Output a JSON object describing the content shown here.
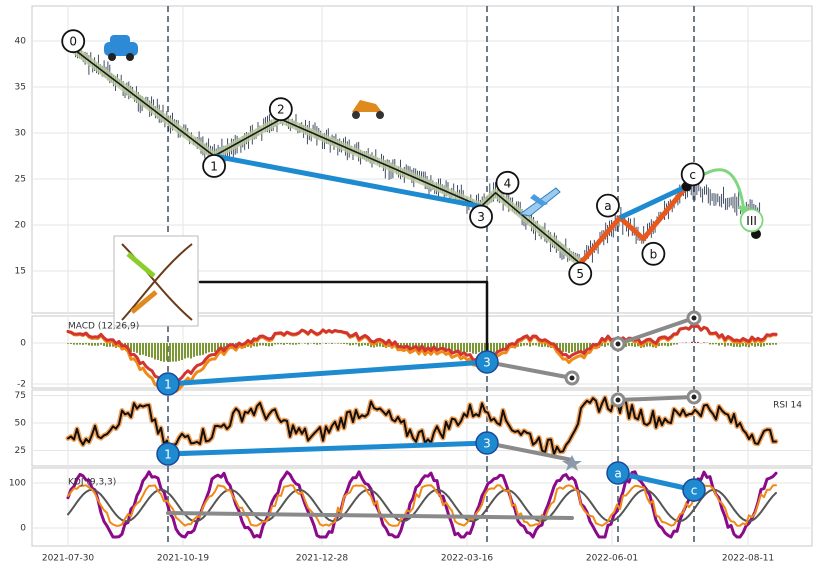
{
  "chart_data": {
    "type": "line",
    "x_ticks": [
      "2021-07-30",
      "2021-10-19",
      "2021-12-28",
      "2022-03-16",
      "2022-06-01",
      "2022-08-11"
    ],
    "price_panel": {
      "y_ticks": [
        15,
        20,
        25,
        30,
        35,
        40
      ],
      "ylim": [
        10,
        44
      ],
      "waves": [
        {
          "label": "0",
          "date": "2021-08-03",
          "price": 39.0
        },
        {
          "label": "1",
          "date": "2021-10-19",
          "price": 27.5
        },
        {
          "label": "2",
          "date": "2021-11-25",
          "price": 31.5
        },
        {
          "label": "3",
          "date": "2022-03-16",
          "price": 22.0
        },
        {
          "label": "4",
          "date": "2022-03-24",
          "price": 23.5
        },
        {
          "label": "5",
          "date": "2022-05-10",
          "price": 15.8
        },
        {
          "label": "a",
          "date": "2022-06-01",
          "price": 20.8
        },
        {
          "label": "b",
          "date": "2022-06-14",
          "price": 18.5
        },
        {
          "label": "c",
          "date": "2022-07-08",
          "price": 24.2
        },
        {
          "label": "III",
          "date": "2022-08-13",
          "price": 20.5
        }
      ]
    },
    "macd_panel": {
      "label": "MACD (12,26,9)",
      "y_ticks": [
        -2,
        0
      ]
    },
    "rsi_panel": {
      "label": "RSI 14",
      "y_ticks": [
        25,
        50,
        75
      ]
    },
    "kdj_panel": {
      "label": "KDJ (9,3,3)",
      "y_ticks": [
        0,
        100
      ]
    },
    "divergence_labels": {
      "macd": [
        "1",
        "3"
      ],
      "rsi": [
        "1",
        "3"
      ],
      "kdj": [
        "a",
        "c"
      ]
    },
    "colors": {
      "price": "#2f3b52",
      "wave_line": "#1a1a1a",
      "wave_halo": "#b8c89a",
      "divergence": "#1e8bd0",
      "correction": "#e8581c",
      "gray_link": "#8a8a8a",
      "macd_fast": "#f08a17",
      "macd_slow": "#d2352f",
      "hist_pos": "#a0322a",
      "hist_neg": "#6e8c1e",
      "rsi_line": "#111111",
      "rsi_halo": "#f4a35a",
      "kdj_k": "#f08a17",
      "kdj_d": "#555555",
      "kdj_j": "#8a0a8a",
      "arrow": "#7ed67e",
      "vline": "#4a5a6a"
    }
  }
}
